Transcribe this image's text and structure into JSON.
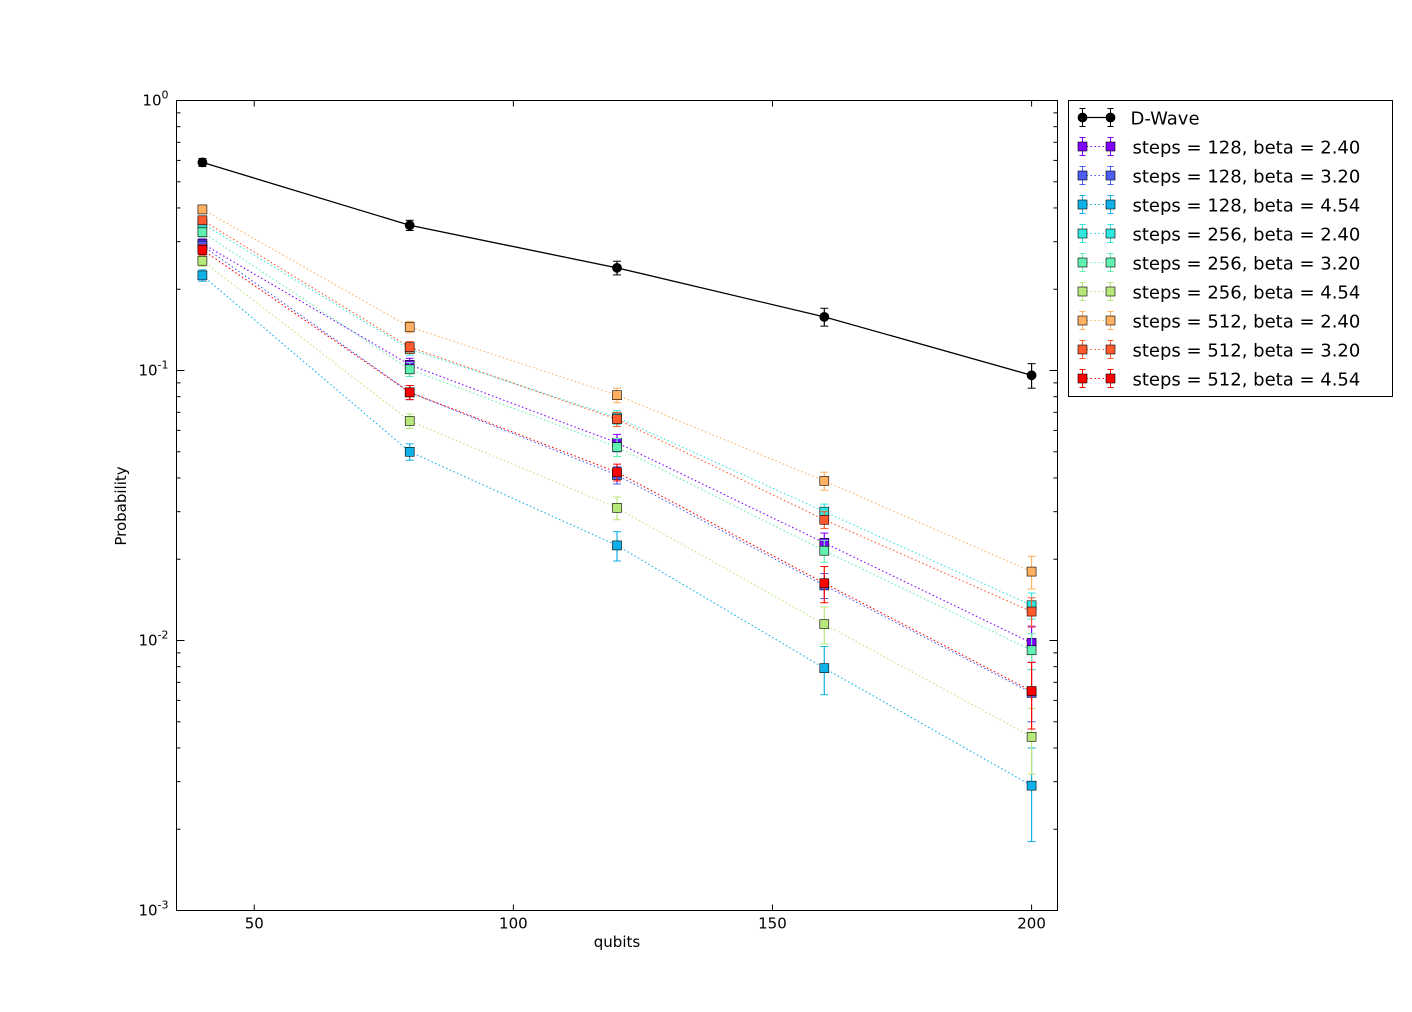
{
  "chart_data": {
    "type": "line",
    "title": "",
    "xlabel": "qubits",
    "ylabel": "Probability",
    "xlim": [
      35,
      205
    ],
    "ylim": [
      0.001,
      1
    ],
    "yscale": "log",
    "x_ticks": [
      50,
      100,
      150,
      200
    ],
    "x_tick_labels": [
      "50",
      "100",
      "150",
      "200"
    ],
    "y_ticks": [
      0.001,
      0.01,
      0.1,
      1
    ],
    "y_tick_labels": [
      {
        "base": "10",
        "exp": "-3"
      },
      {
        "base": "10",
        "exp": "-2"
      },
      {
        "base": "10",
        "exp": "-1"
      },
      {
        "base": "10",
        "exp": "0"
      }
    ],
    "grid": false,
    "legend_position": "outside-right-top",
    "x": [
      40,
      80,
      120,
      160,
      200
    ],
    "series": [
      {
        "name": "D-Wave",
        "color": "#000000",
        "style": "solid",
        "marker": "circle",
        "values": [
          0.59,
          0.345,
          0.24,
          0.158,
          0.096
        ],
        "errors": [
          0.02,
          0.015,
          0.014,
          0.012,
          0.01
        ]
      },
      {
        "name": "steps = 128, beta = 2.40",
        "color": "#7f00ff",
        "style": "dotted",
        "marker": "square",
        "values": [
          0.295,
          0.105,
          0.054,
          0.023,
          0.0098
        ],
        "errors": [
          0.012,
          0.006,
          0.004,
          0.002,
          0.0015
        ]
      },
      {
        "name": "steps = 128, beta = 3.20",
        "color": "#4c5ef4",
        "style": "dotted",
        "marker": "square",
        "values": [
          0.29,
          0.083,
          0.041,
          0.016,
          0.0064
        ],
        "errors": [
          0.012,
          0.005,
          0.003,
          0.0017,
          0.0014
        ]
      },
      {
        "name": "steps = 128, beta = 4.54",
        "color": "#10b1e8",
        "style": "dotted",
        "marker": "square",
        "values": [
          0.225,
          0.05,
          0.0225,
          0.0079,
          0.0029
        ],
        "errors": [
          0.011,
          0.0035,
          0.0028,
          0.0016,
          0.0011
        ]
      },
      {
        "name": "steps = 256, beta = 2.40",
        "color": "#30e7e0",
        "style": "dotted",
        "marker": "square",
        "values": [
          0.35,
          0.12,
          0.067,
          0.03,
          0.0135
        ],
        "errors": [
          0.013,
          0.006,
          0.004,
          0.002,
          0.0015
        ]
      },
      {
        "name": "steps = 256, beta = 3.20",
        "color": "#60f0b0",
        "style": "dotted",
        "marker": "square",
        "values": [
          0.325,
          0.101,
          0.052,
          0.0215,
          0.0092
        ],
        "errors": [
          0.013,
          0.006,
          0.004,
          0.002,
          0.0014
        ]
      },
      {
        "name": "steps = 256, beta = 4.54",
        "color": "#b7e87a",
        "style": "dotted",
        "marker": "square",
        "values": [
          0.255,
          0.065,
          0.031,
          0.0115,
          0.0044
        ],
        "errors": [
          0.012,
          0.004,
          0.003,
          0.0018,
          0.0012
        ]
      },
      {
        "name": "steps = 512, beta = 2.40",
        "color": "#ffb060",
        "style": "dotted",
        "marker": "square",
        "values": [
          0.395,
          0.145,
          0.081,
          0.039,
          0.018
        ],
        "errors": [
          0.014,
          0.007,
          0.005,
          0.003,
          0.0025
        ]
      },
      {
        "name": "steps = 512, beta = 3.20",
        "color": "#ff5a2e",
        "style": "dotted",
        "marker": "square",
        "values": [
          0.36,
          0.122,
          0.066,
          0.028,
          0.0128
        ],
        "errors": [
          0.013,
          0.006,
          0.004,
          0.002,
          0.0016
        ]
      },
      {
        "name": "steps = 512, beta = 4.54",
        "color": "#ff0000",
        "style": "dotted",
        "marker": "square",
        "values": [
          0.28,
          0.083,
          0.042,
          0.0163,
          0.0065
        ],
        "errors": [
          0.012,
          0.005,
          0.003,
          0.0025,
          0.0018
        ]
      }
    ]
  }
}
